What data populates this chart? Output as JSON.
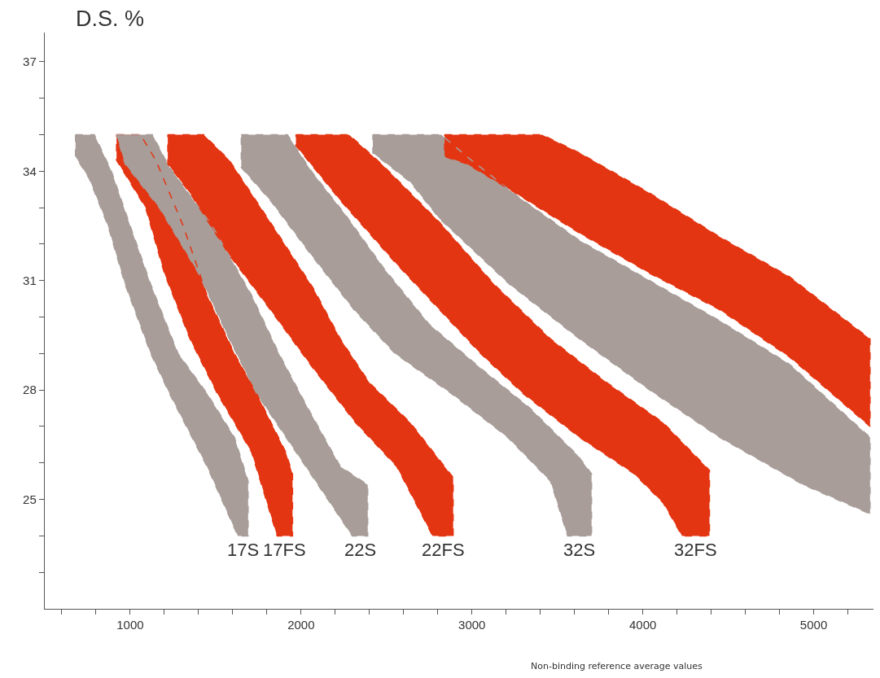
{
  "chart_data": {
    "type": "area",
    "line_style": "dashed",
    "ylabel": "D.S. %",
    "xlabel": "Non-binding reference average values",
    "xlim": [
      500,
      5350
    ],
    "ylim": [
      22,
      37.8
    ],
    "xticks": [
      {
        "value": 600,
        "label": null
      },
      {
        "value": 800,
        "label": null
      },
      1000,
      {
        "value": 1200,
        "label": null
      },
      {
        "value": 1400,
        "label": null
      },
      {
        "value": 1600,
        "label": null
      },
      {
        "value": 1800,
        "label": null
      },
      2000,
      {
        "value": 2200,
        "label": null
      },
      {
        "value": 2400,
        "label": null
      },
      {
        "value": 2600,
        "label": null
      },
      {
        "value": 2800,
        "label": null
      },
      3000,
      {
        "value": 3200,
        "label": null
      },
      {
        "value": 3400,
        "label": null
      },
      {
        "value": 3600,
        "label": null
      },
      {
        "value": 3800,
        "label": null
      },
      4000,
      {
        "value": 4200,
        "label": null
      },
      {
        "value": 4400,
        "label": null
      },
      {
        "value": 4600,
        "label": null
      },
      {
        "value": 4800,
        "label": null
      },
      5000,
      {
        "value": 5200,
        "label": null
      }
    ],
    "yticks": [
      {
        "value": 23,
        "label": null
      },
      {
        "value": 24,
        "label": null
      },
      25,
      {
        "value": 26,
        "label": null
      },
      {
        "value": 27,
        "label": null
      },
      28,
      {
        "value": 29,
        "label": null
      },
      {
        "value": 30,
        "label": null
      },
      31,
      {
        "value": 32,
        "label": null
      },
      {
        "value": 33,
        "label": null
      },
      34,
      {
        "value": 35,
        "label": null
      },
      {
        "value": 36,
        "label": null
      },
      37
    ],
    "series": [
      {
        "name": "17S",
        "color": "#a89d99",
        "x": [
          680,
          790,
          890,
          1000,
          1120,
          1280,
          1450,
          1610,
          1690,
          1690,
          1630,
          1450,
          1230,
          1120,
          970,
          870,
          760,
          680
        ],
        "values": [
          35,
          35,
          34,
          32.5,
          30.9,
          29,
          27.9,
          26.7,
          25.5,
          24,
          24,
          25.9,
          27.9,
          29,
          30.9,
          32.5,
          33.8,
          34.4
        ]
      },
      {
        "name": "17FS",
        "color": "#e43512",
        "x": [
          920,
          1060,
          1150,
          1310,
          1450,
          1610,
          1740,
          1910,
          1950,
          1950,
          1860,
          1710,
          1510,
          1350,
          1200,
          1090,
          920
        ],
        "values": [
          35,
          35,
          34.3,
          32.5,
          30.6,
          29,
          27.9,
          26.3,
          25.7,
          24,
          24,
          26.3,
          27.9,
          29.4,
          31.2,
          33,
          34.3
        ]
      },
      {
        "name": "22S",
        "color": "#a89d99",
        "x": [
          920,
          1130,
          1230,
          1480,
          1710,
          1870,
          2040,
          2230,
          2390,
          2390,
          2300,
          1970,
          1740,
          1580,
          1400,
          1170,
          970
        ],
        "values": [
          35,
          35,
          34.1,
          32.5,
          30.6,
          29,
          27.5,
          25.9,
          25.4,
          24,
          24,
          26.3,
          27.9,
          29.4,
          31.2,
          33,
          34.2
        ]
      },
      {
        "name": "22FS",
        "color": "#e43512",
        "x": [
          1220,
          1430,
          1580,
          1820,
          2070,
          2230,
          2400,
          2640,
          2890,
          2890,
          2770,
          2560,
          2320,
          2070,
          1820,
          1580,
          1350,
          1220
        ],
        "values": [
          35,
          35,
          34.3,
          32.6,
          30.8,
          29.4,
          28.2,
          27.1,
          25.6,
          24,
          24,
          25.9,
          27.1,
          28.6,
          30.2,
          31.7,
          33.4,
          34.2
        ]
      },
      {
        "name": "32S",
        "color": "#a89d99",
        "x": [
          1650,
          1920,
          2060,
          2260,
          2490,
          2750,
          3050,
          3340,
          3620,
          3700,
          3700,
          3560,
          3460,
          3210,
          2880,
          2550,
          2310,
          2060,
          1820,
          1650
        ],
        "values": [
          35,
          35,
          34,
          32.8,
          31.3,
          29.8,
          28.6,
          27.5,
          26.2,
          25.7,
          24,
          24,
          25.5,
          26.7,
          27.9,
          29,
          30.2,
          31.7,
          33.2,
          34.1
        ]
      },
      {
        "name": "32FS",
        "color": "#e43512",
        "x": [
          1970,
          2280,
          2470,
          2810,
          3130,
          3460,
          3790,
          4120,
          4390,
          4390,
          4230,
          4120,
          3950,
          3630,
          3300,
          3050,
          2810,
          2550,
          2230,
          1970
        ],
        "values": [
          35,
          35,
          34.2,
          32.6,
          30.9,
          29.4,
          28.2,
          27.1,
          25.8,
          24,
          24,
          24.9,
          25.7,
          26.7,
          27.9,
          29,
          30.2,
          31.5,
          33.2,
          34.7
        ]
      },
      {
        "color": "#a89d99",
        "x": [
          2420,
          2820,
          2970,
          3270,
          3630,
          4040,
          4450,
          4860,
          5330,
          5330,
          4940,
          4450,
          4040,
          3630,
          3220,
          2810,
          2640,
          2420
        ],
        "values": [
          35,
          35,
          34.4,
          33.3,
          32.1,
          31,
          29.9,
          28.7,
          26.7,
          24.6,
          25.4,
          26.7,
          28,
          29.4,
          30.9,
          32.7,
          33.7,
          34.5
        ]
      },
      {
        "color": "#e43512",
        "x": [
          2840,
          3410,
          3630,
          4040,
          4450,
          4860,
          5330,
          5330,
          4860,
          4450,
          4040,
          3630,
          3220,
          2970,
          2840
        ],
        "values": [
          35,
          35,
          34.5,
          33.4,
          32.2,
          31.1,
          29.4,
          27,
          28.9,
          30.2,
          31.2,
          32.3,
          33.5,
          34.2,
          34.4
        ]
      }
    ]
  }
}
